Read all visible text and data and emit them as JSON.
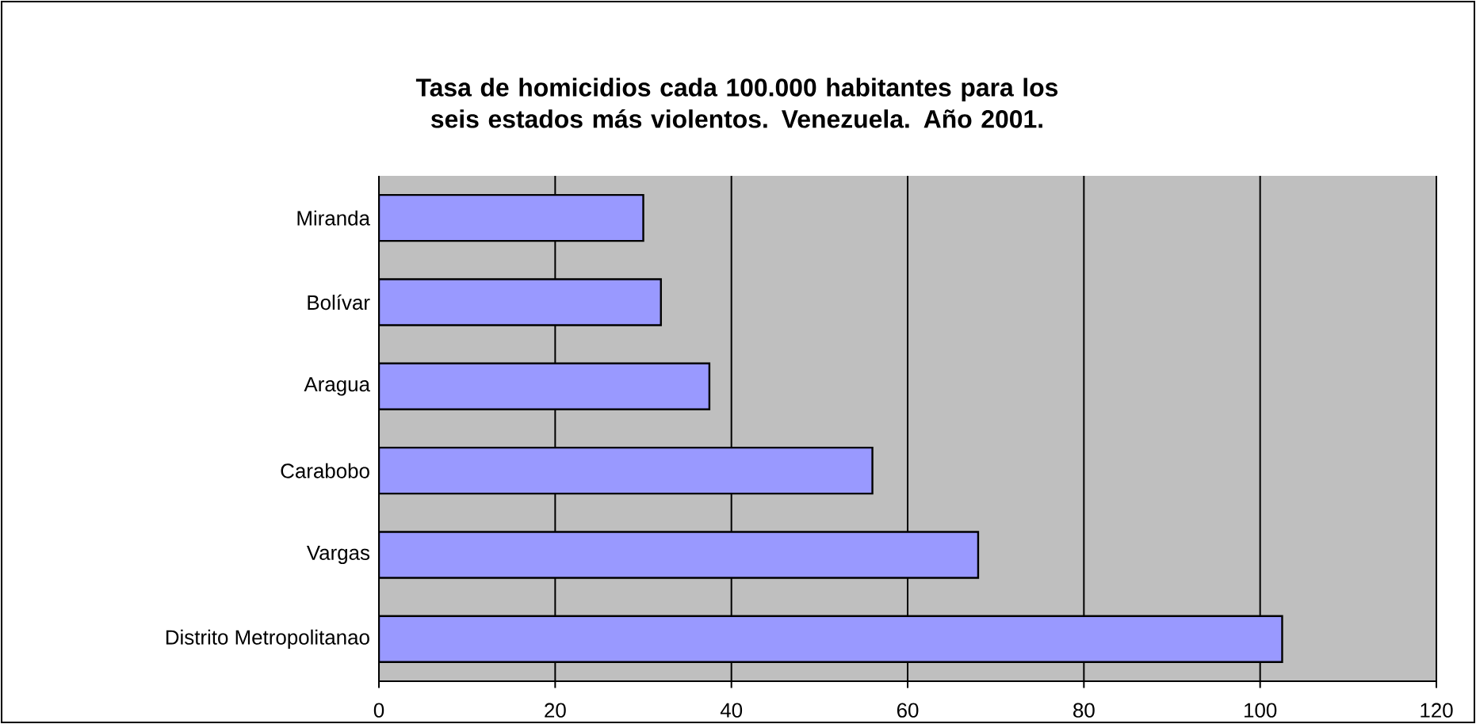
{
  "chart_data": {
    "type": "bar",
    "orientation": "horizontal",
    "title": "Tasa de homicidios cada 100.000 habitantes para los seis estados más violentos. Venezuela. Año 2001.",
    "categories": [
      "Miranda",
      "Bolívar",
      "Aragua",
      "Carabobo",
      "Vargas",
      "Distrito Metropolitanao"
    ],
    "values": [
      30,
      32,
      37.5,
      56,
      68,
      102.5
    ],
    "color": "#9999ff",
    "xlim": [
      0,
      120
    ],
    "xticks": [
      0,
      20,
      40,
      60,
      80,
      100,
      120
    ],
    "grid": "x"
  }
}
